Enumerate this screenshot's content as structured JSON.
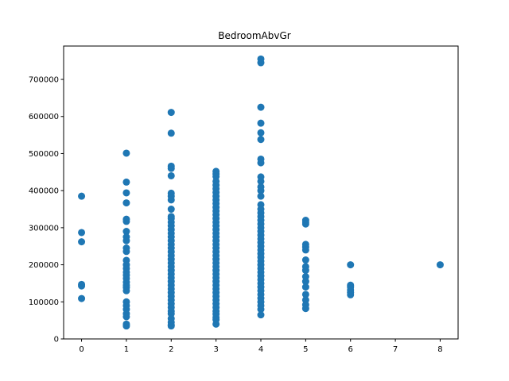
{
  "chart_data": {
    "type": "scatter",
    "title": "BedroomAbvGr",
    "xlabel": "",
    "ylabel": "",
    "xlim": [
      -0.4,
      8.4
    ],
    "ylim": [
      0,
      790000
    ],
    "x_ticks": [
      0,
      1,
      2,
      3,
      4,
      5,
      6,
      7,
      8
    ],
    "y_ticks": [
      0,
      100000,
      200000,
      300000,
      400000,
      500000,
      600000,
      700000
    ],
    "grid": false,
    "legend": "none",
    "marker_color": "#1f77b4",
    "series": [
      {
        "points": [
          [
            0,
            385000
          ],
          [
            0,
            287000
          ],
          [
            0,
            262000
          ],
          [
            0,
            147000
          ],
          [
            0,
            143000
          ],
          [
            0,
            109000
          ],
          [
            1,
            501000
          ],
          [
            1,
            423000
          ],
          [
            1,
            394000
          ],
          [
            1,
            367000
          ],
          [
            1,
            323000
          ],
          [
            1,
            317000
          ],
          [
            1,
            290000
          ],
          [
            1,
            275000
          ],
          [
            1,
            265000
          ],
          [
            1,
            245000
          ],
          [
            1,
            236000
          ],
          [
            1,
            212000
          ],
          [
            1,
            200000
          ],
          [
            1,
            190000
          ],
          [
            1,
            180000
          ],
          [
            1,
            172000
          ],
          [
            1,
            163000
          ],
          [
            1,
            153000
          ],
          [
            1,
            145000
          ],
          [
            1,
            139000
          ],
          [
            1,
            130000
          ],
          [
            1,
            100000
          ],
          [
            1,
            90000
          ],
          [
            1,
            80000
          ],
          [
            1,
            68000
          ],
          [
            1,
            60000
          ],
          [
            1,
            40000
          ],
          [
            1,
            35000
          ],
          [
            2,
            611000
          ],
          [
            2,
            555000
          ],
          [
            2,
            466000
          ],
          [
            2,
            460000
          ],
          [
            2,
            440000
          ],
          [
            2,
            393000
          ],
          [
            2,
            385000
          ],
          [
            2,
            375000
          ],
          [
            2,
            350000
          ],
          [
            2,
            330000
          ],
          [
            2,
            325000
          ],
          [
            2,
            315000
          ],
          [
            2,
            305000
          ],
          [
            2,
            295000
          ],
          [
            2,
            285000
          ],
          [
            2,
            275000
          ],
          [
            2,
            265000
          ],
          [
            2,
            255000
          ],
          [
            2,
            245000
          ],
          [
            2,
            235000
          ],
          [
            2,
            225000
          ],
          [
            2,
            215000
          ],
          [
            2,
            205000
          ],
          [
            2,
            195000
          ],
          [
            2,
            185000
          ],
          [
            2,
            175000
          ],
          [
            2,
            165000
          ],
          [
            2,
            155000
          ],
          [
            2,
            145000
          ],
          [
            2,
            135000
          ],
          [
            2,
            125000
          ],
          [
            2,
            115000
          ],
          [
            2,
            105000
          ],
          [
            2,
            95000
          ],
          [
            2,
            85000
          ],
          [
            2,
            75000
          ],
          [
            2,
            68000
          ],
          [
            2,
            55000
          ],
          [
            2,
            45000
          ],
          [
            2,
            38000
          ],
          [
            2,
            35000
          ],
          [
            3,
            452000
          ],
          [
            3,
            445000
          ],
          [
            3,
            438000
          ],
          [
            3,
            425000
          ],
          [
            3,
            415000
          ],
          [
            3,
            405000
          ],
          [
            3,
            395000
          ],
          [
            3,
            385000
          ],
          [
            3,
            375000
          ],
          [
            3,
            365000
          ],
          [
            3,
            355000
          ],
          [
            3,
            345000
          ],
          [
            3,
            335000
          ],
          [
            3,
            325000
          ],
          [
            3,
            315000
          ],
          [
            3,
            305000
          ],
          [
            3,
            295000
          ],
          [
            3,
            285000
          ],
          [
            3,
            275000
          ],
          [
            3,
            265000
          ],
          [
            3,
            255000
          ],
          [
            3,
            245000
          ],
          [
            3,
            235000
          ],
          [
            3,
            225000
          ],
          [
            3,
            215000
          ],
          [
            3,
            205000
          ],
          [
            3,
            195000
          ],
          [
            3,
            185000
          ],
          [
            3,
            175000
          ],
          [
            3,
            165000
          ],
          [
            3,
            155000
          ],
          [
            3,
            145000
          ],
          [
            3,
            135000
          ],
          [
            3,
            125000
          ],
          [
            3,
            115000
          ],
          [
            3,
            105000
          ],
          [
            3,
            95000
          ],
          [
            3,
            85000
          ],
          [
            3,
            75000
          ],
          [
            3,
            67000
          ],
          [
            3,
            58000
          ],
          [
            3,
            52000
          ],
          [
            3,
            40000
          ],
          [
            4,
            755000
          ],
          [
            4,
            745000
          ],
          [
            4,
            625000
          ],
          [
            4,
            582000
          ],
          [
            4,
            556000
          ],
          [
            4,
            538000
          ],
          [
            4,
            485000
          ],
          [
            4,
            475000
          ],
          [
            4,
            437000
          ],
          [
            4,
            425000
          ],
          [
            4,
            410000
          ],
          [
            4,
            400000
          ],
          [
            4,
            385000
          ],
          [
            4,
            362000
          ],
          [
            4,
            350000
          ],
          [
            4,
            340000
          ],
          [
            4,
            330000
          ],
          [
            4,
            320000
          ],
          [
            4,
            310000
          ],
          [
            4,
            300000
          ],
          [
            4,
            290000
          ],
          [
            4,
            280000
          ],
          [
            4,
            270000
          ],
          [
            4,
            260000
          ],
          [
            4,
            250000
          ],
          [
            4,
            240000
          ],
          [
            4,
            230000
          ],
          [
            4,
            220000
          ],
          [
            4,
            210000
          ],
          [
            4,
            200000
          ],
          [
            4,
            190000
          ],
          [
            4,
            180000
          ],
          [
            4,
            170000
          ],
          [
            4,
            160000
          ],
          [
            4,
            150000
          ],
          [
            4,
            140000
          ],
          [
            4,
            130000
          ],
          [
            4,
            120000
          ],
          [
            4,
            110000
          ],
          [
            4,
            100000
          ],
          [
            4,
            90000
          ],
          [
            4,
            80000
          ],
          [
            4,
            65000
          ],
          [
            5,
            320000
          ],
          [
            5,
            315000
          ],
          [
            5,
            310000
          ],
          [
            5,
            255000
          ],
          [
            5,
            248000
          ],
          [
            5,
            240000
          ],
          [
            5,
            213000
          ],
          [
            5,
            195000
          ],
          [
            5,
            185000
          ],
          [
            5,
            168000
          ],
          [
            5,
            155000
          ],
          [
            5,
            140000
          ],
          [
            5,
            120000
          ],
          [
            5,
            105000
          ],
          [
            5,
            92000
          ],
          [
            5,
            82000
          ],
          [
            6,
            200000
          ],
          [
            6,
            145000
          ],
          [
            6,
            140000
          ],
          [
            6,
            132000
          ],
          [
            6,
            125000
          ],
          [
            6,
            119000
          ],
          [
            8,
            200000
          ]
        ]
      }
    ]
  }
}
